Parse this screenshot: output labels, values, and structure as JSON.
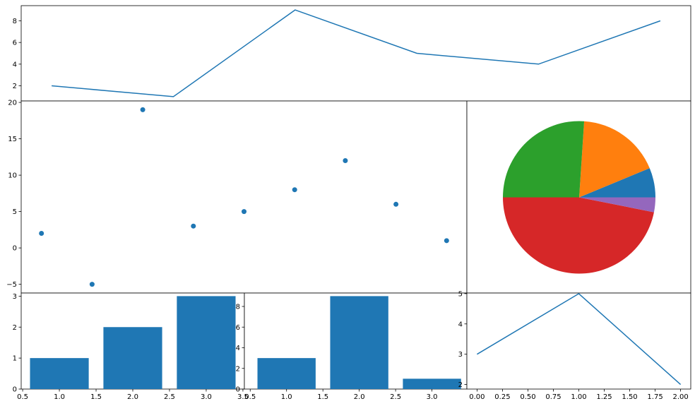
{
  "colors": {
    "line": "#1f77b4",
    "pie": [
      "#1f77b4",
      "#ff7f0e",
      "#2ca02c",
      "#d62728",
      "#9467bd"
    ]
  },
  "chart_data": [
    {
      "type": "line",
      "x": [
        0,
        1,
        2,
        3,
        4,
        5
      ],
      "y": [
        2,
        1,
        9,
        5,
        4,
        8
      ],
      "xlim": [
        -0.25,
        5.25
      ],
      "ylim": [
        0.6,
        9.4
      ],
      "yticks": [
        2,
        4,
        6,
        8
      ],
      "xticks": [
        4,
        5
      ],
      "xtick_labels_position": "top",
      "grid": false
    },
    {
      "type": "scatter",
      "x": [
        0,
        1,
        2,
        3,
        4,
        5,
        6,
        7,
        8
      ],
      "y": [
        2,
        -5,
        19,
        3,
        5,
        8,
        12,
        6,
        1
      ],
      "xlim": [
        -0.4,
        8.4
      ],
      "ylim": [
        -6.2,
        20.2
      ],
      "yticks": [
        -5,
        0,
        5,
        10,
        15,
        20
      ],
      "grid": false
    },
    {
      "type": "pie",
      "values": [
        6,
        17,
        25,
        45,
        3
      ],
      "startangle": 0,
      "grid": false
    },
    {
      "type": "bar",
      "categories": [
        1,
        2,
        3
      ],
      "values": [
        1,
        2,
        3
      ],
      "xlim": [
        0.48,
        3.52
      ],
      "ylim": [
        0,
        3.1
      ],
      "xticks": [
        0.5,
        1.0,
        1.5,
        2.0,
        2.5,
        3.0,
        3.5
      ],
      "xtick_labels": [
        "0.5",
        "1.0",
        "1.5",
        "2.0",
        "2.5",
        "3.0",
        "3.5"
      ],
      "yticks": [
        0,
        1,
        2,
        3
      ],
      "grid": false
    },
    {
      "type": "bar",
      "categories": [
        1,
        2,
        3
      ],
      "values": [
        3,
        9,
        1
      ],
      "xlim": [
        0.42,
        3.48
      ],
      "ylim": [
        0,
        9.3
      ],
      "xticks": [
        0.5,
        1.0,
        1.5,
        2.0,
        2.5,
        3.0
      ],
      "xtick_labels": [
        "0.5",
        "1.0",
        "1.5",
        "2.0",
        "2.5",
        "3.0"
      ],
      "yticks": [
        0,
        2,
        4,
        6,
        8
      ],
      "grid": false
    },
    {
      "type": "line",
      "x": [
        0,
        1,
        2
      ],
      "y": [
        3,
        5,
        2
      ],
      "xlim": [
        -0.1,
        2.1
      ],
      "ylim": [
        1.85,
        5.02
      ],
      "xticks": [
        0.0,
        0.25,
        0.5,
        0.75,
        1.0,
        1.25,
        1.5,
        1.75,
        2.0
      ],
      "xtick_labels": [
        "0.00",
        "0.25",
        "0.50",
        "0.75",
        "1.00",
        "1.25",
        "1.50",
        "1.75",
        "2.00"
      ],
      "yticks": [
        2,
        3,
        4,
        5
      ],
      "grid": false
    }
  ]
}
